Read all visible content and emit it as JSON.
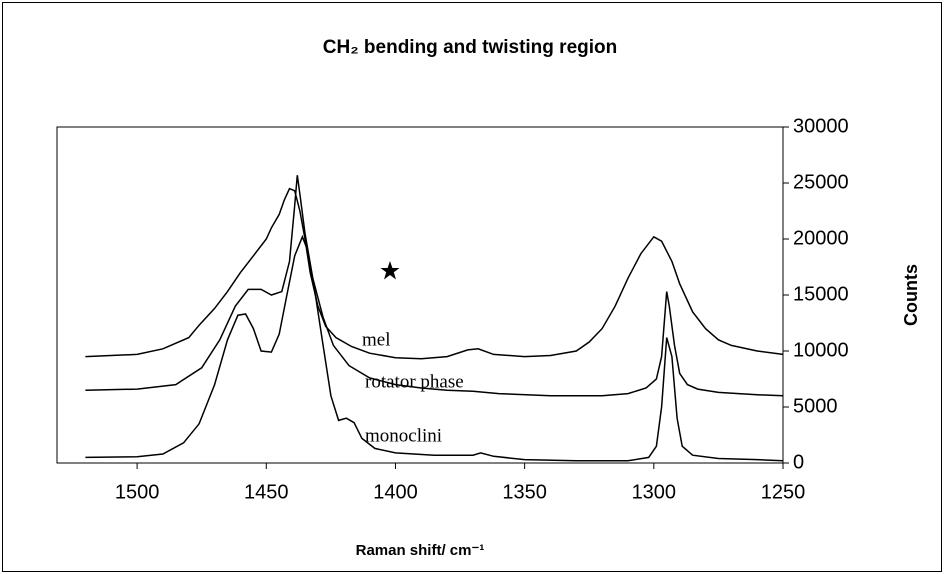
{
  "chart_data": {
    "type": "line",
    "title": "CH₂ bending and twisting region",
    "x_label": "Raman shift/ cm⁻¹",
    "y_label": "Counts",
    "xlim": [
      1531,
      1250
    ],
    "xticks": [
      1500,
      1450,
      1400,
      1350,
      1300,
      1250
    ],
    "ylim": [
      0,
      30000
    ],
    "yticks": [
      0,
      5000,
      10000,
      15000,
      20000,
      25000,
      30000
    ],
    "y_axis_side": "right",
    "series": [
      {
        "name": "mel",
        "color": "#000000",
        "x": [
          1520,
          1500,
          1490,
          1480,
          1476,
          1470,
          1465,
          1460,
          1455,
          1450,
          1448,
          1445,
          1443,
          1441,
          1439,
          1437,
          1435,
          1433,
          1430,
          1427,
          1423,
          1417,
          1410,
          1400,
          1390,
          1380,
          1372,
          1368,
          1362,
          1350,
          1340,
          1330,
          1325,
          1320,
          1315,
          1310,
          1305,
          1300,
          1297,
          1293,
          1290,
          1285,
          1280,
          1275,
          1270,
          1260,
          1250
        ],
        "values": [
          9500,
          9700,
          10200,
          11200,
          12300,
          13800,
          15300,
          17000,
          18500,
          20000,
          21000,
          22200,
          23500,
          24500,
          24300,
          22500,
          20000,
          17000,
          14000,
          12200,
          11200,
          10400,
          9800,
          9400,
          9300,
          9500,
          10100,
          10200,
          9700,
          9500,
          9600,
          10000,
          10800,
          12000,
          14000,
          16500,
          18700,
          20200,
          19800,
          18000,
          16000,
          13500,
          12000,
          11000,
          10500,
          10000,
          9700
        ]
      },
      {
        "name": "rotator phase",
        "color": "#000000",
        "x": [
          1520,
          1500,
          1485,
          1475,
          1468,
          1462,
          1457,
          1452,
          1448,
          1444,
          1441,
          1439,
          1438,
          1437,
          1435,
          1432,
          1428,
          1424,
          1418,
          1410,
          1400,
          1390,
          1380,
          1370,
          1360,
          1340,
          1320,
          1310,
          1303,
          1299,
          1297,
          1295,
          1294,
          1292,
          1290,
          1287,
          1283,
          1275,
          1260,
          1250
        ],
        "values": [
          6500,
          6600,
          7000,
          8500,
          11000,
          14000,
          15500,
          15500,
          15000,
          15300,
          18000,
          23000,
          25700,
          24000,
          20500,
          16500,
          13000,
          10500,
          8700,
          7600,
          7000,
          6700,
          6500,
          6400,
          6200,
          6000,
          6000,
          6200,
          6700,
          7500,
          9500,
          15300,
          14000,
          10500,
          8000,
          7000,
          6600,
          6300,
          6100,
          6000
        ]
      },
      {
        "name": "monoclini",
        "color": "#000000",
        "x": [
          1520,
          1500,
          1490,
          1482,
          1476,
          1470,
          1465,
          1461,
          1458,
          1455,
          1452,
          1448,
          1445,
          1442,
          1439,
          1436,
          1434,
          1431,
          1428,
          1425,
          1422,
          1419,
          1416,
          1413,
          1408,
          1400,
          1385,
          1370,
          1367,
          1362,
          1350,
          1330,
          1310,
          1302,
          1299,
          1297,
          1295,
          1293,
          1291,
          1289,
          1285,
          1275,
          1260,
          1250
        ],
        "values": [
          500,
          550,
          800,
          1800,
          3500,
          7000,
          11000,
          13200,
          13300,
          12000,
          10000,
          9900,
          11500,
          15000,
          18500,
          20200,
          19000,
          15000,
          10500,
          6000,
          3800,
          4000,
          3600,
          2200,
          1300,
          900,
          700,
          700,
          900,
          600,
          300,
          200,
          200,
          500,
          1500,
          5000,
          11200,
          9500,
          4000,
          1500,
          700,
          400,
          300,
          200
        ]
      }
    ]
  }
}
